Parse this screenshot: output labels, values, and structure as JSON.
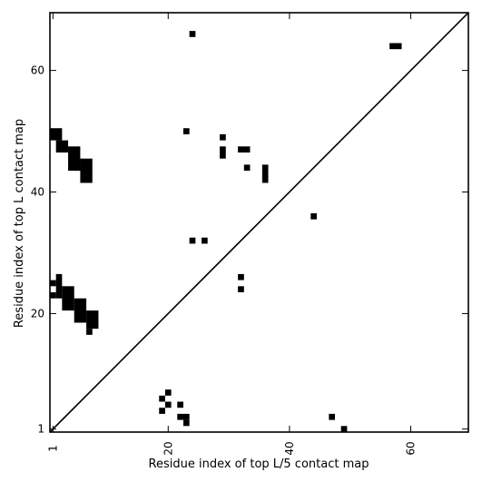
{
  "chart_data": {
    "type": "heatmap",
    "title": "",
    "xlabel": "Residue index of top L/5 contact map",
    "ylabel": "Residue index of top L contact map",
    "xlim": [
      0.5,
      69.5
    ],
    "ylim": [
      0.5,
      69.5
    ],
    "x_ticks": [
      1,
      20,
      40,
      60
    ],
    "y_ticks": [
      1,
      20,
      40,
      60
    ],
    "diagonal": true,
    "grid": false,
    "cell_color": "#000000",
    "background_color": "#ffffff",
    "rects": [
      {
        "x": [
          1,
          2
        ],
        "y": [
          49,
          50
        ]
      },
      {
        "x": [
          2,
          3
        ],
        "y": [
          47,
          48
        ]
      },
      {
        "x": [
          4,
          5
        ],
        "y": [
          44,
          47
        ]
      },
      {
        "x": [
          6,
          7
        ],
        "y": [
          42,
          45
        ]
      },
      {
        "x": [
          5,
          5
        ],
        "y": [
          44,
          45
        ]
      },
      {
        "x": [
          1,
          1
        ],
        "y": [
          25,
          25
        ]
      },
      {
        "x": [
          2,
          2
        ],
        "y": [
          23,
          26
        ]
      },
      {
        "x": [
          3,
          4
        ],
        "y": [
          21,
          24
        ]
      },
      {
        "x": [
          1,
          1
        ],
        "y": [
          23,
          23
        ]
      },
      {
        "x": [
          5,
          6
        ],
        "y": [
          19,
          22
        ]
      },
      {
        "x": [
          7,
          8
        ],
        "y": [
          18,
          20
        ]
      },
      {
        "x": [
          7,
          7
        ],
        "y": [
          17,
          17
        ]
      },
      {
        "x": [
          24,
          24
        ],
        "y": [
          66,
          66
        ]
      },
      {
        "x": [
          23,
          23
        ],
        "y": [
          50,
          50
        ]
      },
      {
        "x": [
          29,
          29
        ],
        "y": [
          49,
          49
        ]
      },
      {
        "x": [
          29,
          29
        ],
        "y": [
          46,
          47
        ]
      },
      {
        "x": [
          32,
          33
        ],
        "y": [
          47,
          47
        ]
      },
      {
        "x": [
          33,
          33
        ],
        "y": [
          44,
          44
        ]
      },
      {
        "x": [
          36,
          36
        ],
        "y": [
          42,
          44
        ]
      },
      {
        "x": [
          57,
          58
        ],
        "y": [
          64,
          64
        ]
      },
      {
        "x": [
          44,
          44
        ],
        "y": [
          36,
          36
        ]
      },
      {
        "x": [
          24,
          24
        ],
        "y": [
          32,
          32
        ]
      },
      {
        "x": [
          26,
          26
        ],
        "y": [
          32,
          32
        ]
      },
      {
        "x": [
          32,
          32
        ],
        "y": [
          26,
          26
        ]
      },
      {
        "x": [
          32,
          32
        ],
        "y": [
          24,
          24
        ]
      },
      {
        "x": [
          20,
          20
        ],
        "y": [
          7,
          7
        ]
      },
      {
        "x": [
          19,
          19
        ],
        "y": [
          6,
          6
        ]
      },
      {
        "x": [
          20,
          20
        ],
        "y": [
          5,
          5
        ]
      },
      {
        "x": [
          19,
          19
        ],
        "y": [
          4,
          4
        ]
      },
      {
        "x": [
          22,
          22
        ],
        "y": [
          5,
          5
        ]
      },
      {
        "x": [
          22,
          23
        ],
        "y": [
          3,
          3
        ]
      },
      {
        "x": [
          23,
          23
        ],
        "y": [
          2,
          2
        ]
      },
      {
        "x": [
          47,
          47
        ],
        "y": [
          3,
          3
        ]
      },
      {
        "x": [
          49,
          49
        ],
        "y": [
          1,
          1
        ]
      }
    ]
  }
}
